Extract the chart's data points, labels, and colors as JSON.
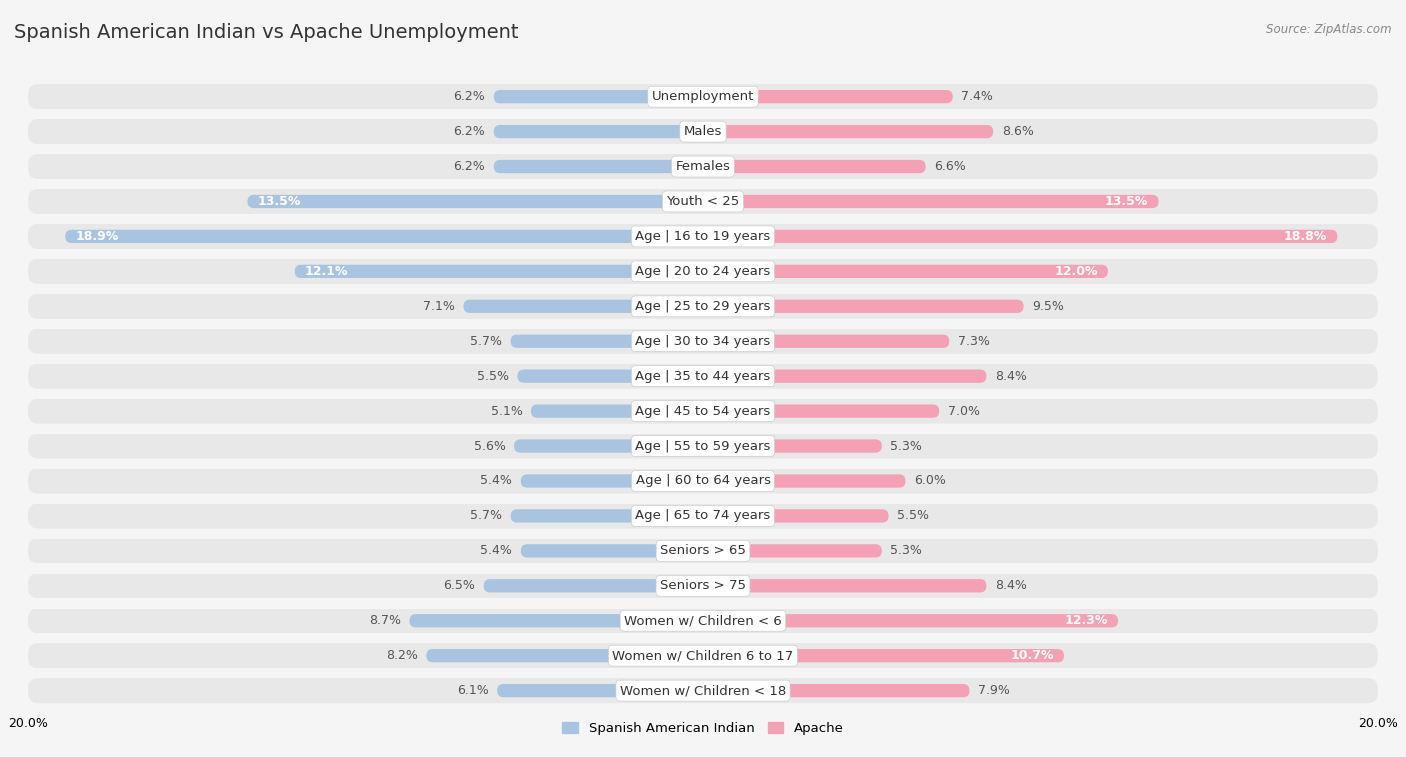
{
  "title": "Spanish American Indian vs Apache Unemployment",
  "source": "Source: ZipAtlas.com",
  "categories": [
    "Unemployment",
    "Males",
    "Females",
    "Youth < 25",
    "Age | 16 to 19 years",
    "Age | 20 to 24 years",
    "Age | 25 to 29 years",
    "Age | 30 to 34 years",
    "Age | 35 to 44 years",
    "Age | 45 to 54 years",
    "Age | 55 to 59 years",
    "Age | 60 to 64 years",
    "Age | 65 to 74 years",
    "Seniors > 65",
    "Seniors > 75",
    "Women w/ Children < 6",
    "Women w/ Children 6 to 17",
    "Women w/ Children < 18"
  ],
  "left_values": [
    6.2,
    6.2,
    6.2,
    13.5,
    18.9,
    12.1,
    7.1,
    5.7,
    5.5,
    5.1,
    5.6,
    5.4,
    5.7,
    5.4,
    6.5,
    8.7,
    8.2,
    6.1
  ],
  "right_values": [
    7.4,
    8.6,
    6.6,
    13.5,
    18.8,
    12.0,
    9.5,
    7.3,
    8.4,
    7.0,
    5.3,
    6.0,
    5.5,
    5.3,
    8.4,
    12.3,
    10.7,
    7.9
  ],
  "left_color": "#a8c4e0",
  "right_color": "#f4a0b5",
  "left_label": "Spanish American Indian",
  "right_label": "Apache",
  "axis_max": 20.0,
  "bg_color": "#f5f5f5",
  "row_bg_color": "#e8e8e8",
  "bar_bg_color": "#dcdcdc",
  "title_fontsize": 14,
  "label_fontsize": 9.5,
  "value_fontsize": 9,
  "source_fontsize": 8.5,
  "inner_threshold": 10.0
}
